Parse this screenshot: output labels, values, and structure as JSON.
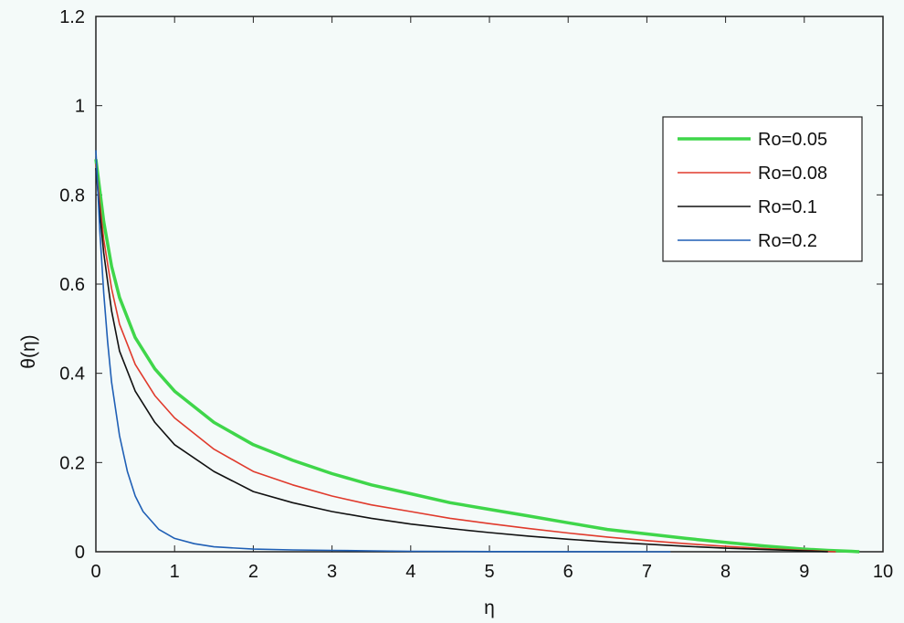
{
  "chart_data": {
    "type": "line",
    "title": "",
    "xlabel": "η",
    "ylabel": "θ(η)",
    "xlim": [
      0,
      10
    ],
    "ylim": [
      0,
      1.2
    ],
    "xticks": [
      0,
      1,
      2,
      3,
      4,
      5,
      6,
      7,
      8,
      9,
      10
    ],
    "yticks": [
      0,
      0.2,
      0.4,
      0.6,
      0.8,
      1,
      1.2
    ],
    "xtick_labels": [
      "0",
      "1",
      "2",
      "3",
      "4",
      "5",
      "6",
      "7",
      "8",
      "9",
      "10"
    ],
    "ytick_labels": [
      "0",
      "0.2",
      "0.4",
      "0.6",
      "0.8",
      "1",
      "1.2"
    ],
    "grid": false,
    "legend_position": "top-right",
    "background_color": "#f4faf9",
    "series": [
      {
        "name": "Ro=0.05",
        "color": "#3fd64a",
        "x": [
          0,
          0.05,
          0.1,
          0.2,
          0.3,
          0.5,
          0.75,
          1,
          1.5,
          2,
          2.5,
          3,
          3.5,
          4,
          4.5,
          5,
          5.5,
          6,
          6.5,
          7,
          7.5,
          8,
          8.5,
          9,
          9.3,
          9.6,
          9.7
        ],
        "y": [
          0.88,
          0.81,
          0.74,
          0.64,
          0.57,
          0.48,
          0.41,
          0.36,
          0.29,
          0.24,
          0.205,
          0.175,
          0.15,
          0.13,
          0.11,
          0.095,
          0.08,
          0.065,
          0.05,
          0.04,
          0.03,
          0.021,
          0.013,
          0.006,
          0.003,
          0.001,
          0.0
        ]
      },
      {
        "name": "Ro=0.08",
        "color": "#e03a2c",
        "x": [
          0,
          0.05,
          0.1,
          0.2,
          0.3,
          0.5,
          0.75,
          1,
          1.5,
          2,
          2.5,
          3,
          3.5,
          4,
          4.5,
          5,
          5.5,
          6,
          6.5,
          7,
          7.5,
          8,
          8.5,
          9,
          9.4
        ],
        "y": [
          0.87,
          0.78,
          0.7,
          0.59,
          0.51,
          0.42,
          0.35,
          0.3,
          0.23,
          0.18,
          0.15,
          0.125,
          0.105,
          0.09,
          0.075,
          0.063,
          0.052,
          0.042,
          0.033,
          0.025,
          0.018,
          0.012,
          0.007,
          0.003,
          0.0
        ]
      },
      {
        "name": "Ro=0.1",
        "color": "#111111",
        "x": [
          0,
          0.05,
          0.1,
          0.2,
          0.3,
          0.5,
          0.75,
          1,
          1.5,
          2,
          2.5,
          3,
          3.5,
          4,
          4.5,
          5,
          5.5,
          6,
          6.5,
          7,
          7.5,
          8,
          8.5,
          9,
          9.3
        ],
        "y": [
          0.86,
          0.76,
          0.67,
          0.54,
          0.45,
          0.36,
          0.29,
          0.24,
          0.18,
          0.135,
          0.11,
          0.09,
          0.075,
          0.062,
          0.052,
          0.043,
          0.035,
          0.028,
          0.022,
          0.017,
          0.012,
          0.008,
          0.005,
          0.002,
          0.0
        ]
      },
      {
        "name": "Ro=0.2",
        "color": "#1f5fb5",
        "x": [
          0,
          0.05,
          0.1,
          0.15,
          0.2,
          0.3,
          0.4,
          0.5,
          0.6,
          0.8,
          1,
          1.25,
          1.5,
          2,
          2.5,
          3,
          3.5,
          4,
          5,
          6,
          7,
          7.3
        ],
        "y": [
          0.9,
          0.72,
          0.58,
          0.47,
          0.38,
          0.26,
          0.18,
          0.125,
          0.09,
          0.05,
          0.03,
          0.018,
          0.011,
          0.006,
          0.004,
          0.003,
          0.002,
          0.001,
          0.0005,
          0.0002,
          0.0,
          0.0
        ]
      }
    ]
  }
}
